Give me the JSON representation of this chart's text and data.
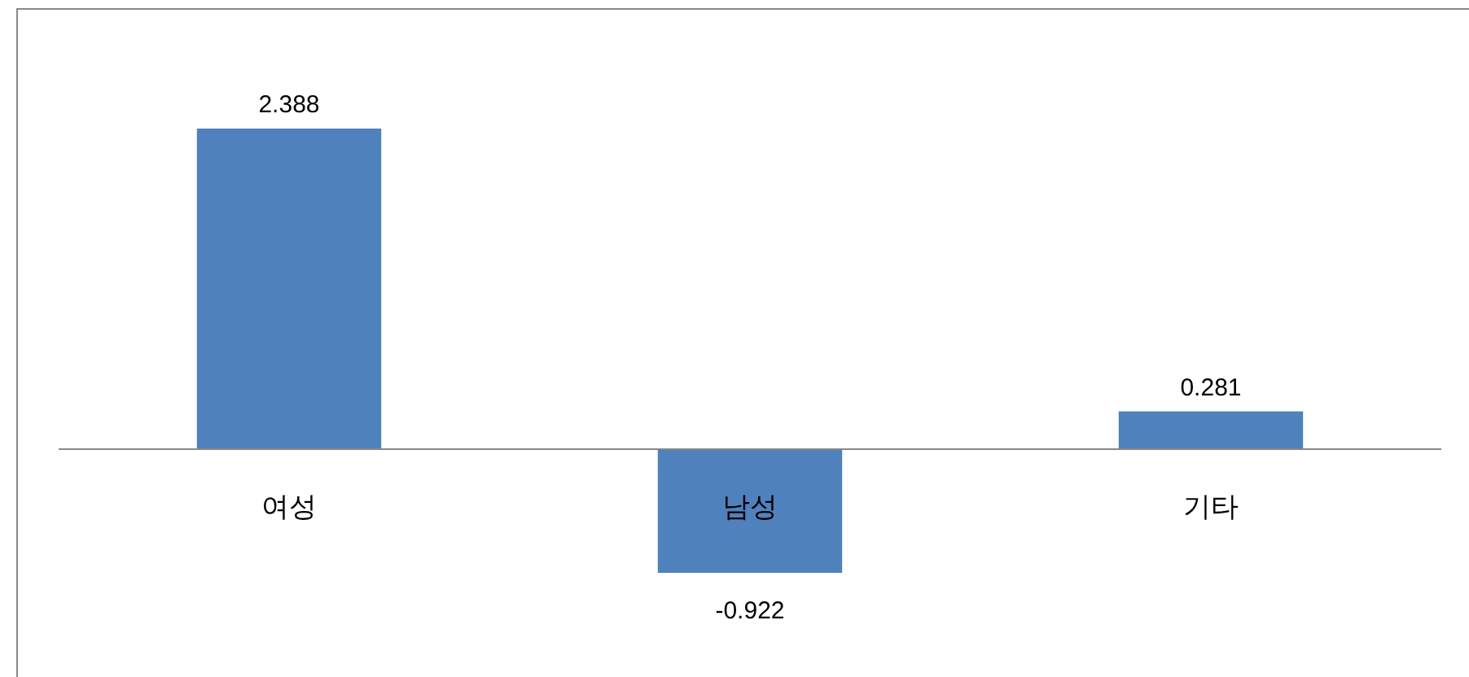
{
  "chart_data": {
    "type": "bar",
    "categories": [
      "여성",
      "남성",
      "기타"
    ],
    "values": [
      2.388,
      -0.922,
      0.281
    ],
    "color": "#4f81bd",
    "data_labels": true
  }
}
